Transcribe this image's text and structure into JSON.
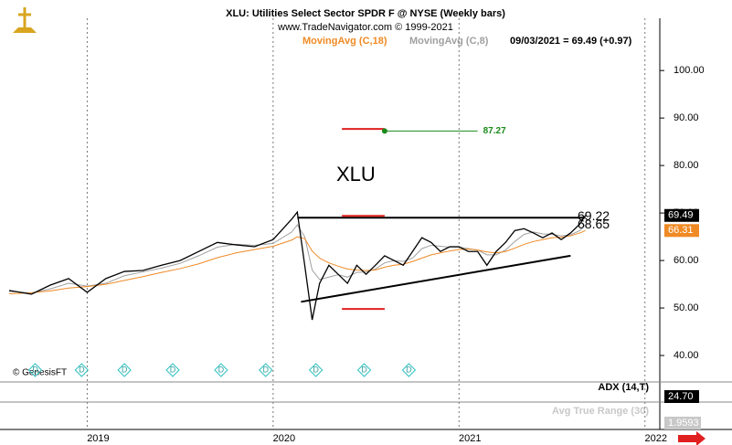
{
  "chart_data": {
    "type": "line",
    "title": "XLU:  Utilities Select Sector SPDR F @ NYSE  (Weekly bars)",
    "subtitle": "www.TradeNavigator.com © 1999-2021",
    "last_quote": "09/03/2021 = 69.49 (+0.97)",
    "annotation": "XLU",
    "copyright": "© GenesisFT",
    "x": [
      2018.58,
      2018.7,
      2018.8,
      2018.9,
      2019.0,
      2019.1,
      2019.2,
      2019.3,
      2019.4,
      2019.5,
      2019.6,
      2019.7,
      2019.8,
      2019.9,
      2020.0,
      2020.1,
      2020.13,
      2020.17,
      2020.21,
      2020.25,
      2020.3,
      2020.35,
      2020.4,
      2020.45,
      2020.5,
      2020.55,
      2020.6,
      2020.65,
      2020.7,
      2020.75,
      2020.8,
      2020.85,
      2020.9,
      2020.95,
      2021.0,
      2021.05,
      2021.1,
      2021.15,
      2021.2,
      2021.25,
      2021.3,
      2021.35,
      2021.4,
      2021.45,
      2021.5,
      2021.55,
      2021.6,
      2021.65,
      2021.68
    ],
    "price": {
      "color": "#000000",
      "values": [
        53.7,
        52.9,
        54.8,
        56.2,
        53.3,
        56.2,
        57.7,
        57.9,
        59.0,
        60.0,
        61.9,
        63.8,
        63.3,
        62.9,
        64.4,
        68.7,
        70.2,
        59.0,
        47.5,
        55.2,
        59.0,
        57.1,
        55.2,
        59.0,
        57.1,
        59.0,
        61.0,
        60.0,
        59.0,
        61.9,
        64.8,
        63.8,
        61.9,
        62.9,
        62.9,
        61.9,
        61.9,
        59.0,
        61.9,
        63.8,
        66.3,
        66.7,
        65.8,
        64.8,
        65.8,
        64.4,
        65.8,
        67.7,
        69.49
      ]
    },
    "series": [
      {
        "name": "MovingAvg (C,18)",
        "color": "#f08a24",
        "values": [
          53.0,
          53.2,
          53.6,
          54.2,
          54.5,
          55.0,
          55.8,
          56.6,
          57.5,
          58.3,
          59.3,
          60.6,
          61.6,
          62.3,
          63.0,
          64.3,
          65.0,
          64.6,
          62.0,
          60.5,
          59.5,
          58.8,
          58.2,
          58.0,
          57.9,
          58.0,
          58.6,
          59.0,
          59.2,
          59.8,
          60.5,
          61.2,
          61.6,
          62.0,
          62.3,
          62.4,
          62.2,
          61.8,
          61.6,
          61.9,
          62.6,
          63.4,
          64.0,
          64.4,
          64.8,
          64.9,
          65.2,
          65.8,
          66.31
        ]
      },
      {
        "name": "MovingAvg (C,8)",
        "color": "#a0a0a0",
        "values": [
          53.5,
          53.2,
          54.0,
          55.2,
          54.6,
          55.2,
          56.8,
          57.6,
          58.4,
          59.4,
          61.0,
          62.8,
          63.4,
          63.2,
          63.6,
          66.0,
          67.5,
          65.0,
          58.0,
          56.0,
          56.5,
          57.0,
          56.5,
          57.5,
          57.6,
          58.2,
          59.5,
          60.0,
          59.8,
          60.5,
          62.5,
          63.2,
          63.0,
          62.8,
          62.8,
          62.5,
          62.2,
          61.2,
          61.2,
          62.2,
          64.0,
          65.5,
          66.0,
          65.6,
          65.5,
          65.2,
          65.4,
          66.3,
          67.6
        ]
      }
    ],
    "xlim": [
      2018.58,
      2022.08
    ],
    "xticks": [
      2019,
      2020,
      2021,
      2022
    ],
    "ylim": [
      35.2,
      111
    ],
    "yticks": [
      {
        "value": 40,
        "label": "40.00"
      },
      {
        "value": 50,
        "label": "50.00"
      },
      {
        "value": 60,
        "label": "60.00"
      },
      {
        "value": 70,
        "label": "70.00"
      },
      {
        "value": 80,
        "label": "80.00"
      },
      {
        "value": 90,
        "label": "90.00"
      },
      {
        "value": 100,
        "label": "100.00"
      }
    ],
    "grid": true,
    "price_tags": [
      {
        "value": 69.49,
        "color": "#000000"
      },
      {
        "value": 66.31,
        "color": "#f08a24"
      }
    ],
    "trendlines": [
      {
        "x": [
          2020.13,
          2021.68
        ],
        "y": [
          69.0,
          69.0
        ],
        "color": "#000000"
      },
      {
        "x": [
          2020.15,
          2021.6
        ],
        "y": [
          51.3,
          61.0
        ],
        "color": "#000000"
      }
    ],
    "red_marks": [
      {
        "x": [
          2020.37,
          2020.6
        ],
        "y": 87.7
      },
      {
        "x": [
          2020.37,
          2020.6
        ],
        "y": 69.4
      },
      {
        "x": [
          2020.37,
          2020.6
        ],
        "y": 49.8
      }
    ],
    "target": {
      "x": [
        2020.6,
        2021.1
      ],
      "value": 87.27,
      "color": "#1a8a1a"
    },
    "level_labels": [
      69.22,
      68.65
    ],
    "dividends": {
      "label": "D",
      "x": [
        2018.72,
        2018.97,
        2019.2,
        2019.46,
        2019.72,
        2019.96,
        2020.23,
        2020.49,
        2020.73
      ]
    },
    "adx": {
      "title": "ADX (14,T)",
      "last": "24.70"
    },
    "atr": {
      "title": "Avg True Range (30)",
      "last": "1.9593"
    }
  }
}
